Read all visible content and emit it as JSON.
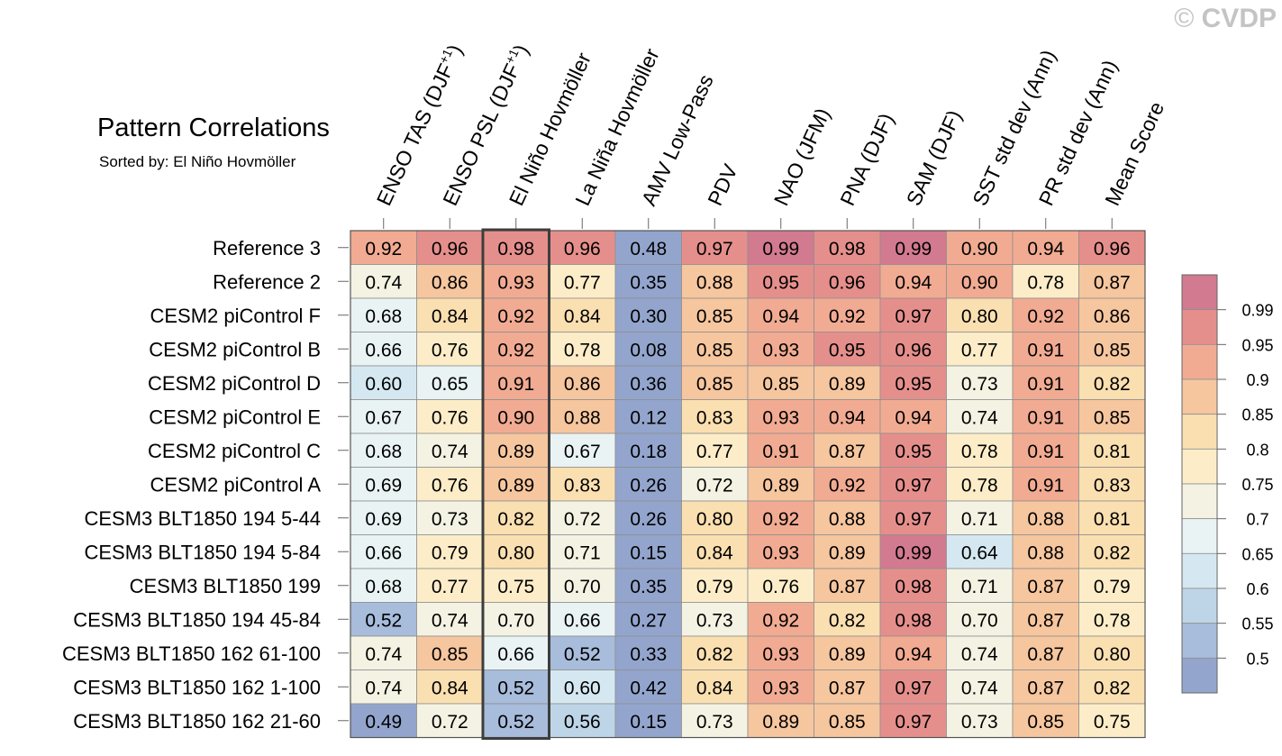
{
  "watermark": {
    "symbol": "©",
    "text": "CVDP"
  },
  "chart_data": {
    "type": "heatmap",
    "title": "Pattern Correlations",
    "subtitle": "Sorted by: El Niño Hovmöller",
    "highlighted_column": "El Niño Hovmöller",
    "columns": [
      {
        "label": "ENSO TAS (DJF",
        "sup": "+1",
        "suffix": ")"
      },
      {
        "label": "ENSO PSL (DJF",
        "sup": "+1",
        "suffix": ")"
      },
      {
        "label": "El Niño Hovmöller",
        "sup": "",
        "suffix": ""
      },
      {
        "label": "La Niña Hovmöller",
        "sup": "",
        "suffix": ""
      },
      {
        "label": "AMV Low-Pass",
        "sup": "",
        "suffix": ""
      },
      {
        "label": "PDV",
        "sup": "",
        "suffix": ""
      },
      {
        "label": "NAO (JFM)",
        "sup": "",
        "suffix": ""
      },
      {
        "label": "PNA (DJF)",
        "sup": "",
        "suffix": ""
      },
      {
        "label": "SAM (DJF)",
        "sup": "",
        "suffix": ""
      },
      {
        "label": "SST std dev (Ann)",
        "sup": "",
        "suffix": ""
      },
      {
        "label": "PR std dev (Ann)",
        "sup": "",
        "suffix": ""
      },
      {
        "label": "Mean Score",
        "sup": "",
        "suffix": ""
      }
    ],
    "rows": [
      {
        "label": "Reference 3",
        "values": [
          "0.92",
          "0.96",
          "0.98",
          "0.96",
          "0.48",
          "0.97",
          "0.99",
          "0.98",
          "0.99",
          "0.90",
          "0.94",
          "0.96"
        ]
      },
      {
        "label": "Reference 2",
        "values": [
          "0.74",
          "0.86",
          "0.93",
          "0.77",
          "0.35",
          "0.88",
          "0.95",
          "0.96",
          "0.94",
          "0.90",
          "0.78",
          "0.87"
        ]
      },
      {
        "label": "CESM2 piControl F",
        "values": [
          "0.68",
          "0.84",
          "0.92",
          "0.84",
          "0.30",
          "0.85",
          "0.94",
          "0.92",
          "0.97",
          "0.80",
          "0.92",
          "0.86"
        ]
      },
      {
        "label": "CESM2 piControl B",
        "values": [
          "0.66",
          "0.76",
          "0.92",
          "0.78",
          "0.08",
          "0.85",
          "0.93",
          "0.95",
          "0.96",
          "0.77",
          "0.91",
          "0.85"
        ]
      },
      {
        "label": "CESM2 piControl D",
        "values": [
          "0.60",
          "0.65",
          "0.91",
          "0.86",
          "0.36",
          "0.85",
          "0.85",
          "0.89",
          "0.95",
          "0.73",
          "0.91",
          "0.82"
        ]
      },
      {
        "label": "CESM2 piControl E",
        "values": [
          "0.67",
          "0.76",
          "0.90",
          "0.88",
          "0.12",
          "0.83",
          "0.93",
          "0.94",
          "0.94",
          "0.74",
          "0.91",
          "0.85"
        ]
      },
      {
        "label": "CESM2 piControl C",
        "values": [
          "0.68",
          "0.74",
          "0.89",
          "0.67",
          "0.18",
          "0.77",
          "0.91",
          "0.87",
          "0.95",
          "0.78",
          "0.91",
          "0.81"
        ]
      },
      {
        "label": "CESM2 piControl A",
        "values": [
          "0.69",
          "0.76",
          "0.89",
          "0.83",
          "0.26",
          "0.72",
          "0.89",
          "0.92",
          "0.97",
          "0.78",
          "0.91",
          "0.83"
        ]
      },
      {
        "label": "CESM3 BLT1850 194 5-44",
        "values": [
          "0.69",
          "0.73",
          "0.82",
          "0.72",
          "0.26",
          "0.80",
          "0.92",
          "0.88",
          "0.97",
          "0.71",
          "0.88",
          "0.81"
        ]
      },
      {
        "label": "CESM3 BLT1850 194 5-84",
        "values": [
          "0.66",
          "0.79",
          "0.80",
          "0.71",
          "0.15",
          "0.84",
          "0.93",
          "0.89",
          "0.99",
          "0.64",
          "0.88",
          "0.82"
        ]
      },
      {
        "label": "CESM3 BLT1850 199",
        "values": [
          "0.68",
          "0.77",
          "0.75",
          "0.70",
          "0.35",
          "0.79",
          "0.76",
          "0.87",
          "0.98",
          "0.71",
          "0.87",
          "0.79"
        ]
      },
      {
        "label": "CESM3 BLT1850 194 45-84",
        "values": [
          "0.52",
          "0.74",
          "0.70",
          "0.66",
          "0.27",
          "0.73",
          "0.92",
          "0.82",
          "0.98",
          "0.70",
          "0.87",
          "0.78"
        ]
      },
      {
        "label": "CESM3 BLT1850 162 61-100",
        "values": [
          "0.74",
          "0.85",
          "0.66",
          "0.52",
          "0.33",
          "0.82",
          "0.93",
          "0.89",
          "0.94",
          "0.74",
          "0.87",
          "0.80"
        ]
      },
      {
        "label": "CESM3 BLT1850 162 1-100",
        "values": [
          "0.74",
          "0.84",
          "0.52",
          "0.60",
          "0.42",
          "0.84",
          "0.93",
          "0.87",
          "0.97",
          "0.74",
          "0.87",
          "0.82"
        ]
      },
      {
        "label": "CESM3 BLT1850 162 21-60",
        "values": [
          "0.49",
          "0.72",
          "0.52",
          "0.56",
          "0.15",
          "0.73",
          "0.89",
          "0.85",
          "0.97",
          "0.73",
          "0.85",
          "0.75"
        ]
      }
    ],
    "colorbar": {
      "levels": [
        "0.5",
        "0.55",
        "0.6",
        "0.65",
        "0.7",
        "0.75",
        "0.8",
        "0.85",
        "0.9",
        "0.95",
        "0.99"
      ],
      "thresholds": [
        0.5,
        0.55,
        0.6,
        0.65,
        0.7,
        0.75,
        0.8,
        0.85,
        0.9,
        0.95,
        0.99
      ],
      "colors": [
        "#93a5cd",
        "#a8bcdb",
        "#bed5e8",
        "#d5e8f1",
        "#e9f3f4",
        "#f4f3e3",
        "#fcedc8",
        "#fadfb1",
        "#f6c69f",
        "#f1ab92",
        "#e58f8c",
        "#d27a8f"
      ]
    }
  }
}
